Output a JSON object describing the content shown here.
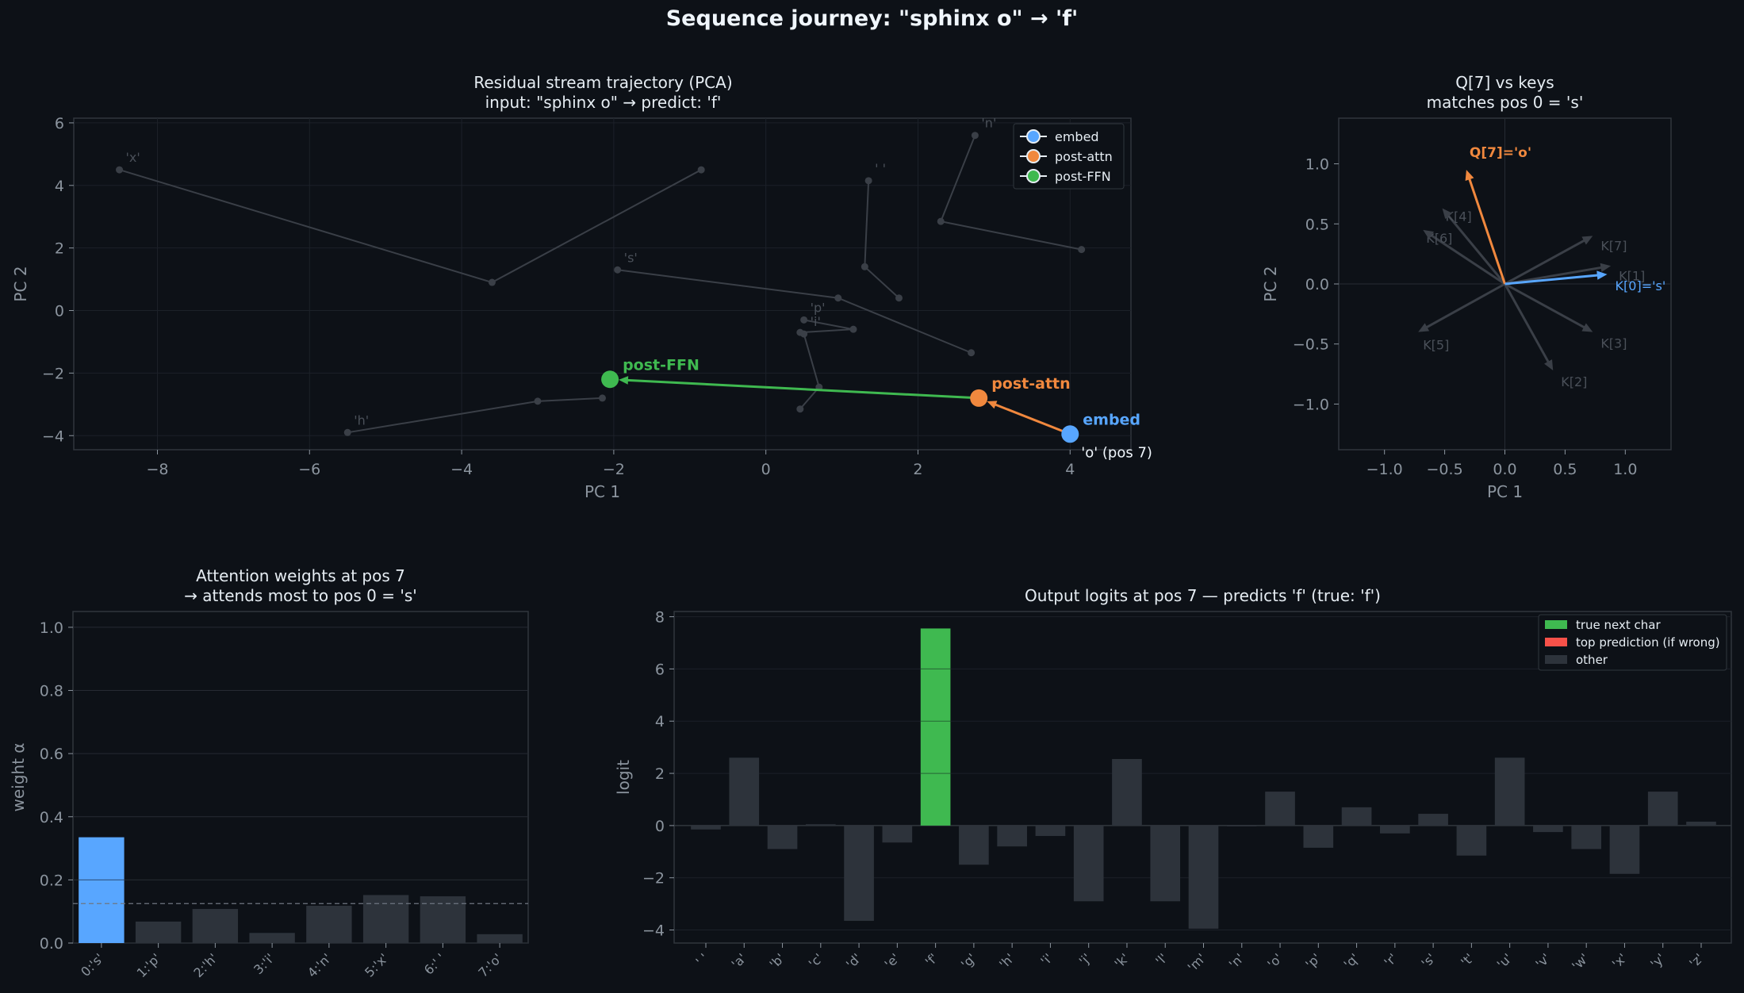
{
  "figure": {
    "title": "Sequence journey: \"sphinx o\" → 'f'"
  },
  "chart_data": [
    {
      "type": "line",
      "title": "Residual stream trajectory (PCA)",
      "subtitle": "input: \"sphinx o\"  →  predict: 'f'",
      "xlabel": "PC 1",
      "ylabel": "PC 2",
      "xlim": [
        -9.1,
        4.8
      ],
      "ylim": [
        -4.45,
        6.15
      ],
      "xticks": [
        -8,
        -6,
        -4,
        -2,
        0,
        2,
        4
      ],
      "yticks": [
        -4,
        -2,
        0,
        2,
        4,
        6
      ],
      "grid": true,
      "legend": {
        "placement": "top-right",
        "entries": [
          {
            "label": "embed",
            "color": "#58a6ff"
          },
          {
            "label": "post-attn",
            "color": "#f0883e"
          },
          {
            "label": "post-FFN",
            "color": "#3fb950"
          }
        ]
      },
      "background_tracks": [
        {
          "label": "'x'",
          "points": [
            [
              -8.5,
              4.5
            ],
            [
              -3.6,
              0.9
            ],
            [
              -0.85,
              4.5
            ]
          ]
        },
        {
          "label": "'h'",
          "points": [
            [
              -5.5,
              -3.9
            ],
            [
              -3.0,
              -2.9
            ],
            [
              -2.15,
              -2.8
            ]
          ]
        },
        {
          "label": "'n'",
          "points": [
            [
              2.75,
              5.6
            ],
            [
              2.3,
              2.85
            ],
            [
              4.15,
              1.95
            ]
          ]
        },
        {
          "label": "' '",
          "points": [
            [
              1.35,
              4.15
            ],
            [
              1.3,
              1.4
            ],
            [
              1.75,
              0.4
            ]
          ]
        },
        {
          "label": "'s'",
          "points": [
            [
              -1.95,
              1.3
            ],
            [
              0.95,
              0.4
            ],
            [
              2.7,
              -1.35
            ]
          ]
        },
        {
          "label": "'p'",
          "points": [
            [
              0.5,
              -0.3
            ],
            [
              1.15,
              -0.6
            ],
            [
              0.45,
              -0.7
            ]
          ]
        },
        {
          "label": "'i'",
          "points": [
            [
              0.5,
              -0.75
            ],
            [
              0.7,
              -2.45
            ],
            [
              0.45,
              -3.15
            ]
          ]
        }
      ],
      "series": [
        {
          "name": "embed",
          "x": 4.0,
          "y": -3.95,
          "color": "#58a6ff"
        },
        {
          "name": "post-attn",
          "x": 2.8,
          "y": -2.8,
          "color": "#f0883e"
        },
        {
          "name": "post-FFN",
          "x": -2.05,
          "y": -2.2,
          "color": "#3fb950"
        }
      ],
      "annotation": "'o' (pos 7)"
    },
    {
      "type": "scatter",
      "title": "Q[7] vs keys",
      "subtitle": "matches pos 0 = 's'",
      "xlabel": "PC 1",
      "ylabel": "PC 2",
      "xlim": [
        -1.38,
        1.38
      ],
      "ylim": [
        -1.38,
        1.38
      ],
      "xticks": [
        -1.0,
        -0.5,
        0.0,
        0.5,
        1.0
      ],
      "yticks": [
        -1.0,
        -0.5,
        0.0,
        0.5,
        1.0
      ],
      "xtick_labels": [
        "−1.0",
        "−0.5",
        "0.0",
        "0.5",
        "1.0"
      ],
      "ytick_labels": [
        "−1.0",
        "−0.5",
        "0.0",
        "0.5",
        "1.0"
      ],
      "vectors": [
        {
          "label": "Q[7]='o'",
          "x": -0.32,
          "y": 0.95,
          "color": "#f0883e",
          "highlight": true
        },
        {
          "label": "K[0]='s'",
          "x": 0.85,
          "y": 0.08,
          "color": "#58a6ff",
          "highlight": true
        },
        {
          "label": "K[1]",
          "x": 0.88,
          "y": 0.15,
          "color": "#3a3f47"
        },
        {
          "label": "K[2]",
          "x": 0.4,
          "y": -0.72,
          "color": "#3a3f47"
        },
        {
          "label": "K[3]",
          "x": 0.73,
          "y": -0.4,
          "color": "#3a3f47"
        },
        {
          "label": "K[4]",
          "x": -0.52,
          "y": 0.63,
          "color": "#3a3f47"
        },
        {
          "label": "K[5]",
          "x": -0.72,
          "y": -0.4,
          "color": "#3a3f47"
        },
        {
          "label": "K[6]",
          "x": -0.68,
          "y": 0.45,
          "color": "#3a3f47"
        },
        {
          "label": "K[7]",
          "x": 0.73,
          "y": 0.4,
          "color": "#3a3f47"
        }
      ]
    },
    {
      "type": "bar",
      "title": "Attention weights at pos 7",
      "subtitle": "→ attends most to pos 0 = 's'",
      "xlabel": "",
      "ylabel": "weight α",
      "ylim": [
        0,
        1.05
      ],
      "yticks": [
        0.0,
        0.2,
        0.4,
        0.6,
        0.8,
        1.0
      ],
      "categories": [
        "0:'s'",
        "1:'p'",
        "2:'h'",
        "3:'i'",
        "4:'n'",
        "5:'x'",
        "6:' '",
        "7:'o'"
      ],
      "values": [
        0.335,
        0.068,
        0.108,
        0.032,
        0.118,
        0.152,
        0.148,
        0.028
      ],
      "highlight_index": 0,
      "highlight_color": "#58a6ff",
      "uniform_line": 0.125
    },
    {
      "type": "bar",
      "title": "Output logits at pos 7 — predicts 'f'  (true: 'f')",
      "xlabel": "",
      "ylabel": "logit",
      "ylim": [
        -4.5,
        8.2
      ],
      "yticks": [
        -4,
        -2,
        0,
        2,
        4,
        6,
        8
      ],
      "ytick_labels": [
        "−4",
        "−2",
        "0",
        "2",
        "4",
        "6",
        "8"
      ],
      "categories": [
        "' '",
        "'a'",
        "'b'",
        "'c'",
        "'d'",
        "'e'",
        "'f'",
        "'g'",
        "'h'",
        "'i'",
        "'j'",
        "'k'",
        "'l'",
        "'m'",
        "'n'",
        "'o'",
        "'p'",
        "'q'",
        "'r'",
        "'s'",
        "'t'",
        "'u'",
        "'v'",
        "'w'",
        "'x'",
        "'y'",
        "'z'"
      ],
      "values": [
        -0.15,
        2.6,
        -0.9,
        0.05,
        -3.65,
        -0.65,
        7.55,
        -1.5,
        -0.8,
        -0.4,
        -2.9,
        2.55,
        -2.9,
        -3.95,
        0.0,
        1.3,
        -0.85,
        0.7,
        -0.3,
        0.45,
        -1.15,
        2.6,
        -0.25,
        -0.9,
        -1.85,
        1.3,
        0.15
      ],
      "true_index": 6,
      "legend": {
        "placement": "top-right",
        "entries": [
          {
            "label": "true next char",
            "color": "#3fb950"
          },
          {
            "label": "top prediction (if wrong)",
            "color": "#f85149"
          },
          {
            "label": "other",
            "color": "#2d333b"
          }
        ]
      }
    }
  ]
}
